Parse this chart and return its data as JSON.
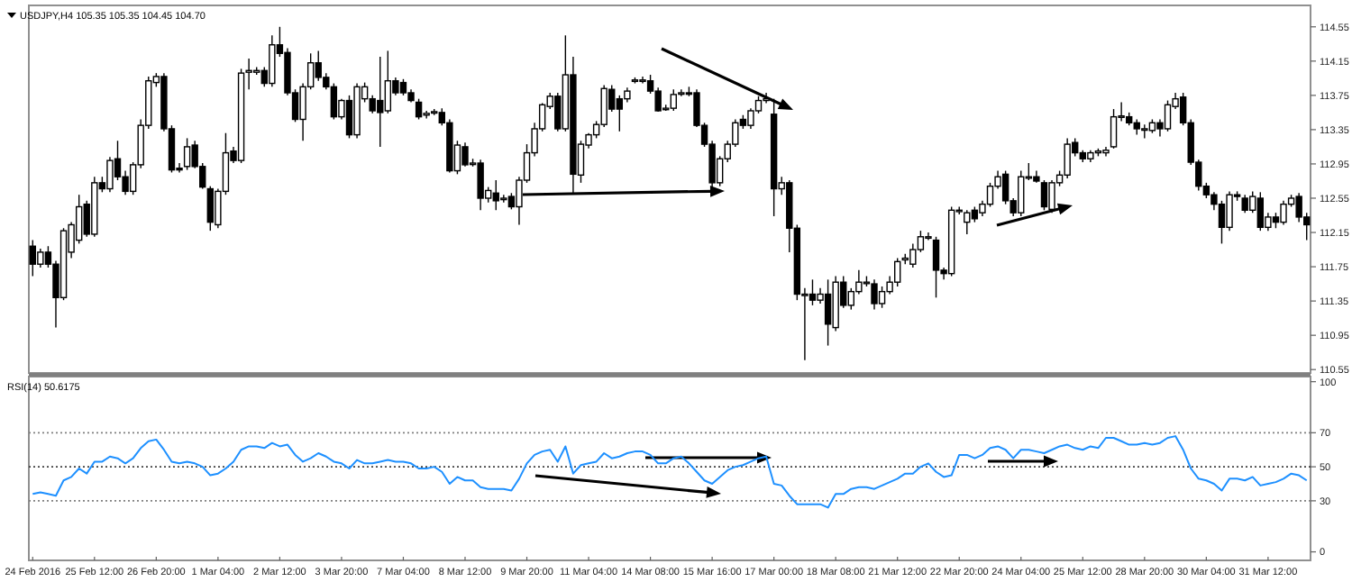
{
  "chart_data": [
    {
      "type": "candlestick",
      "title": "USDJPY,H4 105.35 105.35 104.45 104.70",
      "tick_labels": "y",
      "categories": [
        null,
        null,
        null,
        null,
        null,
        null,
        null,
        null,
        null,
        null,
        null,
        null,
        null,
        null,
        null,
        null,
        null,
        null,
        null,
        null,
        null,
        null,
        null,
        null,
        null,
        null,
        null,
        null,
        null,
        null,
        null,
        null,
        null,
        null,
        null,
        null,
        null,
        null,
        null,
        null,
        null,
        null,
        null,
        null,
        null,
        null,
        null,
        null,
        null,
        null,
        null,
        null,
        null,
        null,
        null,
        null,
        null,
        null,
        null,
        null,
        null,
        null,
        null,
        null,
        null,
        null,
        null,
        null,
        null,
        null,
        null,
        null,
        null,
        null,
        null,
        null,
        null,
        null,
        null,
        null,
        null,
        null,
        null,
        null,
        null,
        null,
        null,
        null,
        null,
        null,
        null,
        null,
        null,
        null,
        null,
        null,
        null,
        null,
        null,
        null,
        null,
        null,
        null,
        null,
        null,
        null,
        null,
        null,
        null,
        null,
        null,
        null,
        null,
        null,
        null,
        null,
        null,
        null,
        null,
        null,
        null,
        null,
        null,
        null,
        null,
        null,
        null,
        null,
        null,
        null,
        null,
        null,
        null,
        null,
        null,
        null,
        null,
        null,
        null,
        null,
        null,
        null,
        null,
        null,
        null,
        null,
        null,
        null,
        null,
        null,
        null,
        null,
        null,
        null,
        null,
        null,
        null,
        null,
        null,
        null,
        null,
        null,
        null,
        null,
        null,
        null
      ],
      "ohlc": [
        [
          111.99,
          112.06,
          111.64,
          111.78
        ],
        [
          111.78,
          111.96,
          111.74,
          111.92
        ],
        [
          111.92,
          111.99,
          111.74,
          111.78
        ],
        [
          111.78,
          111.82,
          111.04,
          111.39
        ],
        [
          111.39,
          112.2,
          111.36,
          112.17
        ],
        [
          111.92,
          112.27,
          111.85,
          112.24
        ],
        [
          112.06,
          112.59,
          112.02,
          112.45
        ],
        [
          112.48,
          112.52,
          112.1,
          112.13
        ],
        [
          112.13,
          112.8,
          112.1,
          112.73
        ],
        [
          112.73,
          112.8,
          112.62,
          112.66
        ],
        [
          112.66,
          113.03,
          112.62,
          112.99
        ],
        [
          113.01,
          113.22,
          112.76,
          112.8
        ],
        [
          112.8,
          112.87,
          112.59,
          112.63
        ],
        [
          112.63,
          112.97,
          112.59,
          112.94
        ],
        [
          112.94,
          113.47,
          112.9,
          113.4
        ],
        [
          113.4,
          113.97,
          113.36,
          113.92
        ],
        [
          113.9,
          114.01,
          113.85,
          113.97
        ],
        [
          113.97,
          114.01,
          113.33,
          113.36
        ],
        [
          113.36,
          113.4,
          112.85,
          112.88
        ],
        [
          112.9,
          112.96,
          112.85,
          112.88
        ],
        [
          112.92,
          113.25,
          112.88,
          113.15
        ],
        [
          113.17,
          113.22,
          112.9,
          112.92
        ],
        [
          112.92,
          112.96,
          112.66,
          112.68
        ],
        [
          112.66,
          112.69,
          112.17,
          112.27
        ],
        [
          112.24,
          112.66,
          112.2,
          112.63
        ],
        [
          112.63,
          113.31,
          112.59,
          113.08
        ],
        [
          113.1,
          113.15,
          112.96,
          112.99
        ],
        [
          112.99,
          114.06,
          112.96,
          114.01
        ],
        [
          114.02,
          114.18,
          113.82,
          114.04
        ],
        [
          114.02,
          114.08,
          113.99,
          114.04
        ],
        [
          114.04,
          114.08,
          113.85,
          113.89
        ],
        [
          113.89,
          114.45,
          113.85,
          114.34
        ],
        [
          114.34,
          114.55,
          114.2,
          114.24
        ],
        [
          114.25,
          114.3,
          113.75,
          113.78
        ],
        [
          113.78,
          113.82,
          113.44,
          113.47
        ],
        [
          113.47,
          113.89,
          113.22,
          113.85
        ],
        [
          113.85,
          114.24,
          113.82,
          114.13
        ],
        [
          114.13,
          114.27,
          113.92,
          113.96
        ],
        [
          113.96,
          114.01,
          113.82,
          113.85
        ],
        [
          113.85,
          113.89,
          113.47,
          113.5
        ],
        [
          113.5,
          113.71,
          113.47,
          113.69
        ],
        [
          113.69,
          113.75,
          113.25,
          113.29
        ],
        [
          113.29,
          113.89,
          113.25,
          113.85
        ],
        [
          113.71,
          113.9,
          113.67,
          113.85
        ],
        [
          113.71,
          113.75,
          113.54,
          113.57
        ],
        [
          113.69,
          114.2,
          113.15,
          113.55
        ],
        [
          113.57,
          114.27,
          113.54,
          113.92
        ],
        [
          113.92,
          113.96,
          113.75,
          113.78
        ],
        [
          113.9,
          113.94,
          113.75,
          113.78
        ],
        [
          113.78,
          113.82,
          113.67,
          113.69
        ],
        [
          113.67,
          113.71,
          113.47,
          113.5
        ],
        [
          113.52,
          113.57,
          113.48,
          113.54
        ],
        [
          113.55,
          113.59,
          113.52,
          113.56
        ],
        [
          113.55,
          113.6,
          113.4,
          113.43
        ],
        [
          113.43,
          113.47,
          112.85,
          112.87
        ],
        [
          112.87,
          113.22,
          112.83,
          113.17
        ],
        [
          113.15,
          113.2,
          112.92,
          112.94
        ],
        [
          112.96,
          113.01,
          112.92,
          112.96
        ],
        [
          112.96,
          113.0,
          112.41,
          112.55
        ],
        [
          112.55,
          112.68,
          112.5,
          112.64
        ],
        [
          112.61,
          112.76,
          112.41,
          112.52
        ],
        [
          112.55,
          112.59,
          112.5,
          112.55
        ],
        [
          112.57,
          112.61,
          112.42,
          112.45
        ],
        [
          112.45,
          112.8,
          112.24,
          112.76
        ],
        [
          112.76,
          113.18,
          112.73,
          113.08
        ],
        [
          113.08,
          113.43,
          113.04,
          113.36
        ],
        [
          113.36,
          113.66,
          113.33,
          113.64
        ],
        [
          113.62,
          113.78,
          113.59,
          113.74
        ],
        [
          113.74,
          113.78,
          113.33,
          113.36
        ],
        [
          113.36,
          114.45,
          113.33,
          113.99
        ],
        [
          113.99,
          114.2,
          112.61,
          112.83
        ],
        [
          112.82,
          113.22,
          112.73,
          113.18
        ],
        [
          113.17,
          113.31,
          113.13,
          113.29
        ],
        [
          113.29,
          113.45,
          113.25,
          113.41
        ],
        [
          113.41,
          113.87,
          113.38,
          113.83
        ],
        [
          113.82,
          113.87,
          113.56,
          113.59
        ],
        [
          113.71,
          113.75,
          113.33,
          113.59
        ],
        [
          113.71,
          113.84,
          113.67,
          113.8
        ],
        [
          113.92,
          113.96,
          113.89,
          113.93
        ],
        [
          113.93,
          113.97,
          113.89,
          113.93
        ],
        [
          113.92,
          113.99,
          113.77,
          113.8
        ],
        [
          113.8,
          113.84,
          113.56,
          113.57
        ],
        [
          113.59,
          113.64,
          113.57,
          113.6
        ],
        [
          113.6,
          113.82,
          113.57,
          113.76
        ],
        [
          113.77,
          113.82,
          113.74,
          113.78
        ],
        [
          113.78,
          113.85,
          113.74,
          113.77
        ],
        [
          113.78,
          113.82,
          113.38,
          113.4
        ],
        [
          113.4,
          113.43,
          113.15,
          113.18
        ],
        [
          113.18,
          113.22,
          112.64,
          112.73
        ],
        [
          112.73,
          113.04,
          112.69,
          113.01
        ],
        [
          113.01,
          113.22,
          112.97,
          113.18
        ],
        [
          113.18,
          113.47,
          113.15,
          113.43
        ],
        [
          113.47,
          113.52,
          113.36,
          113.4
        ],
        [
          113.4,
          113.6,
          113.36,
          113.57
        ],
        [
          113.57,
          113.74,
          113.54,
          113.69
        ],
        [
          113.69,
          113.78,
          113.66,
          113.71
        ],
        [
          113.53,
          113.71,
          112.34,
          112.66
        ],
        [
          112.66,
          112.8,
          112.59,
          112.73
        ],
        [
          112.73,
          112.76,
          111.92,
          112.2
        ],
        [
          112.2,
          112.24,
          111.36,
          111.43
        ],
        [
          111.43,
          111.5,
          110.66,
          111.43
        ],
        [
          111.43,
          111.6,
          111.3,
          111.36
        ],
        [
          111.36,
          111.5,
          111.32,
          111.43
        ],
        [
          111.43,
          111.6,
          110.83,
          111.08
        ],
        [
          111.04,
          111.64,
          111.0,
          111.57
        ],
        [
          111.57,
          111.64,
          111.27,
          111.3
        ],
        [
          111.3,
          111.5,
          111.25,
          111.46
        ],
        [
          111.46,
          111.71,
          111.43,
          111.57
        ],
        [
          111.57,
          111.64,
          111.52,
          111.57
        ],
        [
          111.55,
          111.6,
          111.25,
          111.32
        ],
        [
          111.32,
          111.52,
          111.27,
          111.46
        ],
        [
          111.46,
          111.64,
          111.43,
          111.57
        ],
        [
          111.57,
          111.85,
          111.52,
          111.81
        ],
        [
          111.83,
          111.9,
          111.78,
          111.85
        ],
        [
          111.78,
          112.02,
          111.74,
          111.95
        ],
        [
          111.95,
          112.17,
          111.92,
          112.1
        ],
        [
          112.1,
          112.15,
          112.06,
          112.1
        ],
        [
          112.06,
          112.1,
          111.39,
          111.71
        ],
        [
          111.71,
          111.74,
          111.6,
          111.67
        ],
        [
          111.67,
          112.45,
          111.64,
          112.41
        ],
        [
          112.41,
          112.45,
          112.36,
          112.41
        ],
        [
          112.27,
          112.41,
          112.13,
          112.38
        ],
        [
          112.41,
          112.45,
          112.27,
          112.31
        ],
        [
          112.38,
          112.52,
          112.34,
          112.48
        ],
        [
          112.48,
          112.73,
          112.45,
          112.69
        ],
        [
          112.69,
          112.87,
          112.66,
          112.8
        ],
        [
          112.83,
          112.87,
          112.48,
          112.52
        ],
        [
          112.52,
          112.55,
          112.34,
          112.38
        ],
        [
          112.38,
          112.87,
          112.34,
          112.8
        ],
        [
          112.8,
          112.96,
          112.76,
          112.8
        ],
        [
          112.8,
          112.87,
          112.73,
          112.75
        ],
        [
          112.73,
          112.76,
          112.41,
          112.45
        ],
        [
          112.42,
          112.76,
          112.38,
          112.73
        ],
        [
          112.73,
          112.87,
          112.69,
          112.82
        ],
        [
          112.82,
          113.25,
          112.78,
          113.18
        ],
        [
          113.2,
          113.25,
          113.04,
          113.08
        ],
        [
          113.08,
          113.11,
          112.97,
          113.01
        ],
        [
          113.01,
          113.11,
          112.97,
          113.08
        ],
        [
          113.08,
          113.13,
          113.04,
          113.1
        ],
        [
          113.08,
          113.15,
          113.04,
          113.11
        ],
        [
          113.15,
          113.59,
          113.13,
          113.5
        ],
        [
          113.5,
          113.67,
          113.45,
          113.51
        ],
        [
          113.5,
          113.55,
          113.4,
          113.43
        ],
        [
          113.43,
          113.47,
          113.29,
          113.36
        ],
        [
          113.36,
          113.41,
          113.25,
          113.36
        ],
        [
          113.34,
          113.47,
          113.31,
          113.43
        ],
        [
          113.43,
          113.47,
          113.27,
          113.36
        ],
        [
          113.36,
          113.69,
          113.33,
          113.64
        ],
        [
          113.62,
          113.78,
          113.59,
          113.71
        ],
        [
          113.73,
          113.78,
          113.4,
          113.43
        ],
        [
          113.43,
          113.47,
          112.94,
          112.97
        ],
        [
          112.97,
          113.0,
          112.64,
          112.69
        ],
        [
          112.69,
          112.73,
          112.55,
          112.59
        ],
        [
          112.59,
          112.62,
          112.41,
          112.48
        ],
        [
          112.48,
          112.52,
          112.02,
          112.21
        ],
        [
          112.21,
          112.63,
          112.17,
          112.59
        ],
        [
          112.59,
          112.63,
          112.52,
          112.57
        ],
        [
          112.55,
          112.59,
          112.38,
          112.41
        ],
        [
          112.41,
          112.63,
          112.38,
          112.57
        ],
        [
          112.55,
          112.62,
          112.17,
          112.21
        ],
        [
          112.21,
          112.38,
          112.17,
          112.33
        ],
        [
          112.33,
          112.38,
          112.2,
          112.27
        ],
        [
          112.27,
          112.52,
          112.24,
          112.48
        ],
        [
          112.48,
          112.59,
          112.45,
          112.55
        ],
        [
          112.57,
          112.61,
          112.27,
          112.33
        ],
        [
          112.33,
          112.38,
          112.06,
          112.24
        ]
      ],
      "ylim": [
        110.51,
        114.8
      ],
      "yticks": [
        110.55,
        110.95,
        111.35,
        111.75,
        112.15,
        112.55,
        112.95,
        113.35,
        113.75,
        114.15,
        114.55
      ]
    },
    {
      "type": "line",
      "title": "RSI(14) 50.6175",
      "color": "#1e90ff",
      "categories": [
        "24 Feb 2016",
        null,
        null,
        null,
        null,
        null,
        null,
        null,
        "25 Feb 12:00",
        null,
        null,
        null,
        null,
        null,
        null,
        null,
        "26 Feb 20:00",
        null,
        null,
        null,
        null,
        null,
        null,
        null,
        "1 Mar 04:00",
        null,
        null,
        null,
        null,
        null,
        null,
        null,
        "2 Mar 12:00",
        null,
        null,
        null,
        null,
        null,
        null,
        null,
        "3 Mar 20:00",
        null,
        null,
        null,
        null,
        null,
        null,
        null,
        "7 Mar 04:00",
        null,
        null,
        null,
        null,
        null,
        null,
        null,
        "8 Mar 12:00",
        null,
        null,
        null,
        null,
        null,
        null,
        null,
        "9 Mar 20:00",
        null,
        null,
        null,
        null,
        null,
        null,
        null,
        "11 Mar 04:00",
        null,
        null,
        null,
        null,
        null,
        null,
        null,
        "14 Mar 08:00",
        null,
        null,
        null,
        null,
        null,
        null,
        null,
        "15 Mar 16:00",
        null,
        null,
        null,
        null,
        null,
        null,
        null,
        "17 Mar 00:00",
        null,
        null,
        null,
        null,
        null,
        null,
        null,
        "18 Mar 08:00",
        null,
        null,
        null,
        null,
        null,
        null,
        null,
        "21 Mar 12:00",
        null,
        null,
        null,
        null,
        null,
        null,
        null,
        "22 Mar 20:00",
        null,
        null,
        null,
        null,
        null,
        null,
        null,
        "24 Mar 04:00",
        null,
        null,
        null,
        null,
        null,
        null,
        null,
        "25 Mar 12:00",
        null,
        null,
        null,
        null,
        null,
        null,
        null,
        "28 Mar 20:00",
        null,
        null,
        null,
        null,
        null,
        null,
        null,
        "30 Mar 04:00",
        null,
        null,
        null,
        null,
        null,
        null,
        null,
        "31 Mar 12:00",
        null,
        null,
        null,
        null,
        null
      ],
      "values": [
        34,
        35,
        34,
        33,
        42,
        44,
        49,
        46,
        53,
        53,
        56,
        55,
        52,
        55,
        61,
        65,
        66,
        60,
        53,
        52,
        53,
        52,
        50,
        45,
        46,
        49,
        53,
        60,
        62,
        62,
        61,
        64,
        62,
        63,
        57,
        53,
        55,
        58,
        56,
        53,
        52,
        49,
        54,
        52,
        52,
        53,
        54,
        53,
        53,
        52,
        49,
        49,
        50,
        47,
        40,
        44,
        42,
        42,
        38,
        37,
        37,
        37,
        36,
        43,
        52,
        57,
        59,
        60,
        53,
        62,
        46,
        51,
        52,
        53,
        58,
        55,
        56,
        58,
        59,
        59,
        57,
        52,
        52,
        55,
        56,
        52,
        47,
        42,
        40,
        44,
        48,
        50,
        51,
        53,
        55,
        56,
        40,
        39,
        33,
        28,
        28,
        28,
        28,
        26,
        34,
        34,
        37,
        38,
        38,
        37,
        39,
        41,
        43,
        46,
        46,
        50,
        52,
        47,
        44,
        45,
        57,
        57,
        55,
        57,
        61,
        62,
        60,
        55,
        60,
        60,
        59,
        58,
        60,
        62,
        63,
        61,
        60,
        62,
        61,
        67,
        67,
        65,
        63,
        63,
        64,
        63,
        64,
        67,
        68,
        60,
        49,
        43,
        42,
        40,
        36,
        43,
        43,
        42,
        44,
        39,
        40,
        41,
        43,
        46,
        45,
        42
      ],
      "ylim": [
        -5,
        103
      ],
      "yticks": [
        0,
        30,
        50,
        70,
        100
      ],
      "ref_lines": [
        {
          "axis": "y",
          "value": 70,
          "color": "#808080",
          "line_style": "dotted"
        },
        {
          "axis": "y",
          "value": 50,
          "color": "#404040",
          "line_style": "dotted"
        },
        {
          "axis": "y",
          "value": 30,
          "color": "#808080",
          "line_style": "dotted"
        }
      ]
    }
  ]
}
